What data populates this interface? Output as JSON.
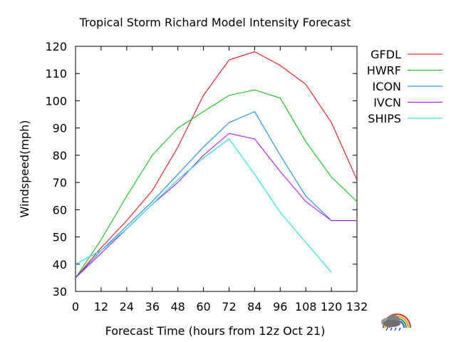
{
  "chart_data": {
    "type": "line",
    "title": "Tropical Storm Richard Model Intensity Forecast",
    "xlabel": "Forecast Time (hours from 12z Oct 21)",
    "ylabel": "Windspeed(mph)",
    "xlim": [
      0,
      132
    ],
    "ylim": [
      30,
      120
    ],
    "xticks": [
      0,
      12,
      24,
      36,
      48,
      60,
      72,
      84,
      96,
      108,
      120,
      132
    ],
    "yticks": [
      30,
      40,
      50,
      60,
      70,
      80,
      90,
      100,
      110,
      120
    ],
    "grid": false,
    "legend_position": "right",
    "series": [
      {
        "name": "GFDL",
        "color": "#ff0000",
        "x": [
          0,
          12,
          24,
          36,
          48,
          60,
          72,
          84,
          96,
          108,
          120,
          132
        ],
        "y": [
          35,
          46,
          56,
          67,
          83,
          102,
          115,
          118,
          113,
          106,
          92,
          71
        ]
      },
      {
        "name": "HWRF",
        "color": "#00c000",
        "x": [
          0,
          12,
          24,
          36,
          48,
          60,
          72,
          84,
          96,
          108,
          120,
          132
        ],
        "y": [
          35,
          49,
          65,
          80,
          90,
          96,
          102,
          104,
          101,
          85,
          72,
          63
        ]
      },
      {
        "name": "ICON",
        "color": "#0080ff",
        "x": [
          0,
          12,
          24,
          36,
          48,
          60,
          72,
          84,
          96,
          108,
          120,
          132
        ],
        "y": [
          35,
          45,
          54,
          63,
          73,
          83,
          92,
          96,
          80,
          65,
          56,
          56
        ]
      },
      {
        "name": "IVCN",
        "color": "#c000ff",
        "x": [
          0,
          12,
          24,
          36,
          48,
          60,
          72,
          84,
          96,
          108,
          120,
          132
        ],
        "y": [
          35,
          44,
          53,
          62,
          70,
          80,
          88,
          86,
          74,
          63,
          56,
          56
        ]
      },
      {
        "name": "SHIPS",
        "color": "#00e0e0",
        "x": [
          0,
          12,
          24,
          36,
          48,
          60,
          72,
          84,
          96,
          108,
          120
        ],
        "y": [
          40,
          45,
          53,
          62,
          71,
          79,
          86,
          73,
          59,
          48,
          37
        ]
      }
    ]
  },
  "logo": {
    "name": "weather-logo-icon"
  }
}
